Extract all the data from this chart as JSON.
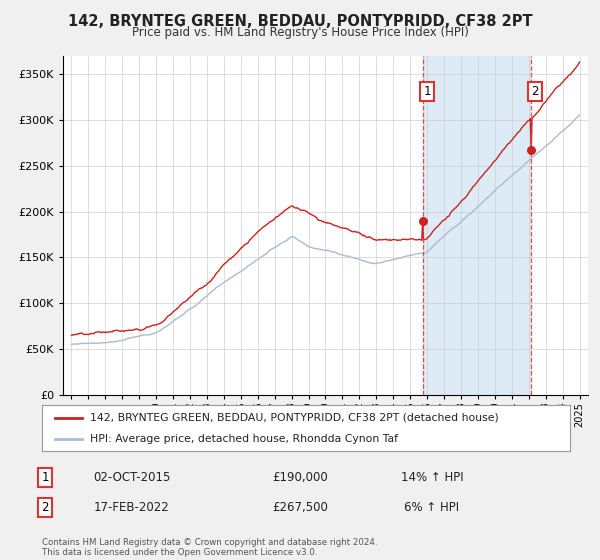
{
  "title": "142, BRYNTEG GREEN, BEDDAU, PONTYPRIDD, CF38 2PT",
  "subtitle": "Price paid vs. HM Land Registry's House Price Index (HPI)",
  "legend_line1": "142, BRYNTEG GREEN, BEDDAU, PONTYPRIDD, CF38 2PT (detached house)",
  "legend_line2": "HPI: Average price, detached house, Rhondda Cynon Taf",
  "sale1_date": "02-OCT-2015",
  "sale1_price": "£190,000",
  "sale1_hpi": "14% ↑ HPI",
  "sale1_year": 2015.75,
  "sale1_value": 190000,
  "sale2_date": "17-FEB-2022",
  "sale2_price": "£267,500",
  "sale2_hpi": "6% ↑ HPI",
  "sale2_year": 2022.125,
  "sale2_value": 267500,
  "hpi_color": "#aabbd4",
  "price_color": "#cc2222",
  "dot_color": "#cc2222",
  "vline_color": "#dd3333",
  "shade_color": "#d8e8f5",
  "background_color": "#f0f0f0",
  "plot_bg_color": "#ffffff",
  "legend_border_color": "#999999",
  "footer": "Contains HM Land Registry data © Crown copyright and database right 2024.\nThis data is licensed under the Open Government Licence v3.0.",
  "yticks": [
    0,
    50000,
    100000,
    150000,
    200000,
    250000,
    300000,
    350000
  ],
  "ylim": [
    0,
    370000
  ],
  "xlim_start": 1994.5,
  "xlim_end": 2025.5
}
